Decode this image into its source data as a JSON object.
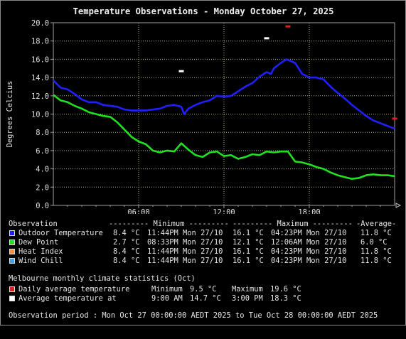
{
  "chart_data": {
    "type": "line",
    "title": "Temperature Observations - Monday October 27, 2025",
    "ylabel": "Degrees Celcius",
    "xlabel": "",
    "ylim": [
      0,
      20
    ],
    "yticks": [
      "0.0",
      "2.0",
      "4.0",
      "6.0",
      "8.0",
      "10.0",
      "12.0",
      "14.0",
      "16.0",
      "18.0",
      "20.0"
    ],
    "xlim": [
      0,
      24
    ],
    "xticks": [
      {
        "h": 6,
        "label": "06:00"
      },
      {
        "h": 12,
        "label": "12:00"
      },
      {
        "h": 18,
        "label": "18:00"
      }
    ],
    "grid": true,
    "series": [
      {
        "name": "Outdoor Temperature",
        "color": "#2020ff",
        "points": [
          [
            0,
            13.7
          ],
          [
            0.5,
            12.9
          ],
          [
            1,
            12.7
          ],
          [
            1.5,
            12.2
          ],
          [
            2,
            11.6
          ],
          [
            2.5,
            11.3
          ],
          [
            3,
            11.3
          ],
          [
            3.5,
            11.0
          ],
          [
            4,
            10.9
          ],
          [
            4.5,
            10.8
          ],
          [
            5,
            10.5
          ],
          [
            5.5,
            10.4
          ],
          [
            6,
            10.4
          ],
          [
            6.5,
            10.4
          ],
          [
            7,
            10.5
          ],
          [
            7.5,
            10.6
          ],
          [
            8,
            10.9
          ],
          [
            8.5,
            11.0
          ],
          [
            9,
            10.8
          ],
          [
            9.2,
            10.0
          ],
          [
            9.5,
            10.6
          ],
          [
            10,
            11.0
          ],
          [
            10.5,
            11.3
          ],
          [
            11,
            11.5
          ],
          [
            11.5,
            12.0
          ],
          [
            12,
            11.9
          ],
          [
            12.5,
            12.0
          ],
          [
            13,
            12.5
          ],
          [
            13.5,
            13.0
          ],
          [
            14,
            13.4
          ],
          [
            14.5,
            14.1
          ],
          [
            15,
            14.6
          ],
          [
            15.3,
            14.4
          ],
          [
            15.5,
            15.0
          ],
          [
            16,
            15.6
          ],
          [
            16.4,
            16.0
          ],
          [
            16.7,
            15.8
          ],
          [
            17,
            15.6
          ],
          [
            17.5,
            14.4
          ],
          [
            18,
            14.0
          ],
          [
            18.5,
            14.0
          ],
          [
            19,
            13.8
          ],
          [
            19.5,
            13.0
          ],
          [
            20,
            12.3
          ],
          [
            20.5,
            11.7
          ],
          [
            21,
            11.0
          ],
          [
            21.5,
            10.4
          ],
          [
            22,
            9.8
          ],
          [
            22.5,
            9.3
          ],
          [
            23,
            9.0
          ],
          [
            23.5,
            8.7
          ],
          [
            24,
            8.4
          ]
        ]
      },
      {
        "name": "Dew Point",
        "color": "#20e020",
        "points": [
          [
            0,
            12.1
          ],
          [
            0.5,
            11.5
          ],
          [
            1,
            11.3
          ],
          [
            1.5,
            10.9
          ],
          [
            2,
            10.6
          ],
          [
            2.5,
            10.2
          ],
          [
            3,
            10.0
          ],
          [
            3.5,
            9.8
          ],
          [
            4,
            9.7
          ],
          [
            4.5,
            9.1
          ],
          [
            5,
            8.3
          ],
          [
            5.5,
            7.5
          ],
          [
            6,
            7.0
          ],
          [
            6.5,
            6.7
          ],
          [
            7,
            6.0
          ],
          [
            7.5,
            5.8
          ],
          [
            8,
            6.0
          ],
          [
            8.5,
            5.9
          ],
          [
            9,
            6.8
          ],
          [
            9.5,
            6.1
          ],
          [
            10,
            5.5
          ],
          [
            10.5,
            5.3
          ],
          [
            11,
            5.8
          ],
          [
            11.5,
            5.9
          ],
          [
            12,
            5.4
          ],
          [
            12.5,
            5.5
          ],
          [
            13,
            5.1
          ],
          [
            13.5,
            5.3
          ],
          [
            14,
            5.6
          ],
          [
            14.5,
            5.5
          ],
          [
            15,
            5.9
          ],
          [
            15.5,
            5.8
          ],
          [
            16,
            5.9
          ],
          [
            16.5,
            5.9
          ],
          [
            17,
            4.8
          ],
          [
            17.5,
            4.7
          ],
          [
            18,
            4.5
          ],
          [
            18.5,
            4.2
          ],
          [
            19,
            4.0
          ],
          [
            19.5,
            3.6
          ],
          [
            20,
            3.3
          ],
          [
            20.5,
            3.1
          ],
          [
            21,
            2.9
          ],
          [
            21.5,
            3.0
          ],
          [
            22,
            3.3
          ],
          [
            22.5,
            3.4
          ],
          [
            23,
            3.3
          ],
          [
            23.5,
            3.3
          ],
          [
            24,
            3.2
          ]
        ]
      }
    ],
    "markers": [
      {
        "label": "Daily average temperature",
        "color": "#e02020",
        "points": [
          [
            16.5,
            19.6
          ],
          [
            24,
            9.5
          ]
        ]
      },
      {
        "label": "Average temperature",
        "color": "#ffffff",
        "points": [
          [
            9,
            14.7
          ],
          [
            15,
            18.3
          ]
        ]
      }
    ]
  },
  "legend": {
    "header": {
      "observation": "Observation",
      "minimum": "--------- Minimum ---------",
      "maximum": "--------- Maximum ---------",
      "average": "-Average-"
    },
    "rows": [
      {
        "color": "#2020ff",
        "name": "Outdoor Temperature",
        "min": "8.4 °C",
        "min_at": "11:44PM Mon 27/10",
        "max": "16.1 °C",
        "max_at": "04:23PM Mon 27/10",
        "avg": "11.8 °C"
      },
      {
        "color": "#20e020",
        "name": "Dew Point",
        "min": "2.7 °C",
        "min_at": "08:33PM Mon 27/10",
        "max": "12.1 °C",
        "max_at": "12:06AM Mon 27/10",
        "avg": "6.0 °C"
      },
      {
        "color": "#ff9040",
        "name": "Heat Index",
        "min": "8.4 °C",
        "min_at": "11:44PM Mon 27/10",
        "max": "16.1 °C",
        "max_at": "04:23PM Mon 27/10",
        "avg": "11.8 °C"
      },
      {
        "color": "#40a0e0",
        "name": "Wind Chill",
        "min": "8.4 °C",
        "min_at": "11:44PM Mon 27/10",
        "max": "16.1 °C",
        "max_at": "04:23PM Mon 27/10",
        "avg": "11.8 °C"
      }
    ]
  },
  "climate": {
    "title": "Melbourne monthly climate statistics (Oct)",
    "rows": [
      {
        "color": "#e02020",
        "name": "Daily average temperature",
        "a_label": "Minimum",
        "a_value": "9.5 °C",
        "b_label": "Maximum",
        "b_value": "19.6 °C"
      },
      {
        "color": "#ffffff",
        "name": "Average temperature at",
        "a_label": "9:00 AM",
        "a_value": "14.7 °C",
        "b_label": "3:00 PM",
        "b_value": "18.3 °C"
      }
    ]
  },
  "period": "Observation period : Mon Oct 27 00:00:00 AEDT 2025 to Tue Oct 28 00:00:00 AEDT 2025"
}
